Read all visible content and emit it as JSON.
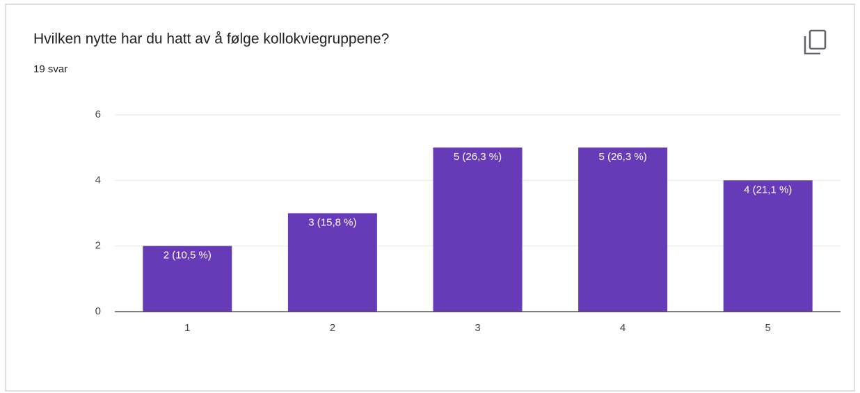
{
  "chart_data": {
    "type": "bar",
    "title": "Hvilken nytte har du hatt av å følge kollokviegruppene?",
    "subtitle": "19 svar",
    "categories": [
      "1",
      "2",
      "3",
      "4",
      "5"
    ],
    "values": [
      2,
      3,
      5,
      5,
      4
    ],
    "value_labels": [
      "2 (10,5 %)",
      "3 (15,8 %)",
      "5 (26,3 %)",
      "5 (26,3 %)",
      "4 (21,1 %)"
    ],
    "color": "#673ab7",
    "ylim": [
      0,
      6
    ],
    "yticks": [
      0,
      2,
      4,
      6
    ],
    "grid": true
  }
}
